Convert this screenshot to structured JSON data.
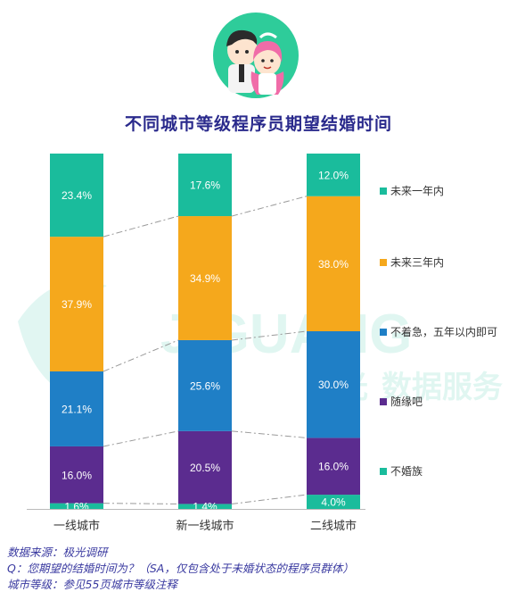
{
  "title": "不同城市等级程序员期望结婚时间",
  "watermark": {
    "latin": "JIGUANG",
    "cn": "极光",
    "tagline": "数据服务"
  },
  "footer": {
    "source": "数据来源：极光调研",
    "question": "Q：您期望的结婚时间为？（SA，仅包含处于未婚状态的程序员群体）",
    "note": "城市等级：参见55页城市等级注释"
  },
  "chart_data": {
    "type": "bar",
    "stacked": true,
    "percent": true,
    "categories": [
      "一线城市",
      "新一线城市",
      "二线城市"
    ],
    "series": [
      {
        "name": "不婚族",
        "values": [
          1.6,
          1.4,
          4.0
        ],
        "labels": [
          "1.6%",
          "1.4%",
          "4.0%"
        ],
        "color": "#1abc9c"
      },
      {
        "name": "随缘吧",
        "values": [
          16.0,
          20.5,
          16.0
        ],
        "labels": [
          "16.0%",
          "20.5%",
          "16.0%"
        ],
        "color": "#5b2c8f"
      },
      {
        "name": "不着急，五年以内即可",
        "values": [
          21.1,
          25.6,
          30.0
        ],
        "labels": [
          "21.1%",
          "25.6%",
          "30.0%"
        ],
        "color": "#1f7fc6"
      },
      {
        "name": "未来三年内",
        "values": [
          37.9,
          34.9,
          38.0
        ],
        "labels": [
          "37.9%",
          "34.9%",
          "38.0%"
        ],
        "color": "#f5a81c"
      },
      {
        "name": "未来一年内",
        "values": [
          23.4,
          17.6,
          12.0
        ],
        "labels": [
          "23.4%",
          "17.6%",
          "12.0%"
        ],
        "color": "#1abc9c"
      }
    ],
    "legend_order": [
      "未来一年内",
      "未来三年内",
      "不着急，五年以内即可",
      "随缘吧",
      "不婚族"
    ],
    "legend_position": "right",
    "connectors": "dash-dot",
    "ylim": [
      0,
      100
    ]
  }
}
